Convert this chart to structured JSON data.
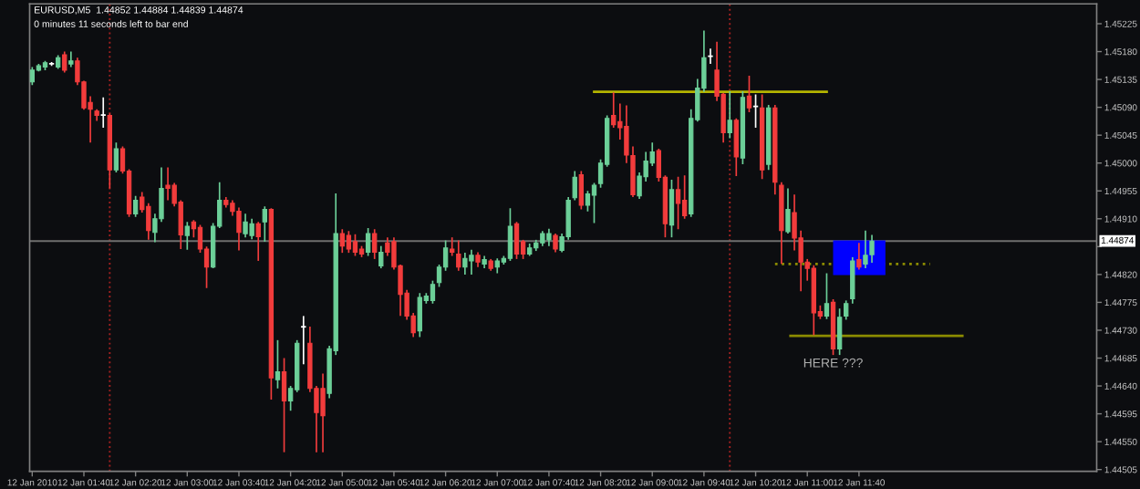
{
  "chart_data": {
    "type": "candlestick",
    "title": "EURUSD,M5  1.44852 1.44884 1.44839 1.44874",
    "annotations": [
      "0 minutes 11 seconds left to bar end",
      "HERE ???"
    ],
    "x": [
      "2010-01-12T01:00",
      "2010-01-12T01:05",
      "2010-01-12T01:10",
      "2010-01-12T01:15",
      "2010-01-12T01:20",
      "2010-01-12T01:25",
      "2010-01-12T01:30",
      "2010-01-12T01:35",
      "2010-01-12T01:40",
      "2010-01-12T01:45",
      "2010-01-12T01:50",
      "2010-01-12T01:55",
      "2010-01-12T02:00",
      "2010-01-12T02:05",
      "2010-01-12T02:10",
      "2010-01-12T02:15",
      "2010-01-12T02:20",
      "2010-01-12T02:25",
      "2010-01-12T02:30",
      "2010-01-12T02:35",
      "2010-01-12T02:40",
      "2010-01-12T02:45",
      "2010-01-12T02:50",
      "2010-01-12T02:55",
      "2010-01-12T03:00",
      "2010-01-12T03:05",
      "2010-01-12T03:10",
      "2010-01-12T03:15",
      "2010-01-12T03:20",
      "2010-01-12T03:25",
      "2010-01-12T03:30",
      "2010-01-12T03:35",
      "2010-01-12T03:40",
      "2010-01-12T03:45",
      "2010-01-12T03:50",
      "2010-01-12T03:55",
      "2010-01-12T04:00",
      "2010-01-12T04:05",
      "2010-01-12T04:10",
      "2010-01-12T04:15",
      "2010-01-12T04:20",
      "2010-01-12T04:25",
      "2010-01-12T04:30",
      "2010-01-12T04:35",
      "2010-01-12T04:40",
      "2010-01-12T04:45",
      "2010-01-12T04:50",
      "2010-01-12T04:55",
      "2010-01-12T05:00",
      "2010-01-12T05:05",
      "2010-01-12T05:10",
      "2010-01-12T05:15",
      "2010-01-12T05:20",
      "2010-01-12T05:25",
      "2010-01-12T05:30",
      "2010-01-12T05:35",
      "2010-01-12T05:40",
      "2010-01-12T05:45",
      "2010-01-12T05:50",
      "2010-01-12T05:55",
      "2010-01-12T06:00",
      "2010-01-12T06:05",
      "2010-01-12T06:10",
      "2010-01-12T06:15",
      "2010-01-12T06:20",
      "2010-01-12T06:25",
      "2010-01-12T06:30",
      "2010-01-12T06:35",
      "2010-01-12T06:40",
      "2010-01-12T06:45",
      "2010-01-12T06:50",
      "2010-01-12T06:55",
      "2010-01-12T07:00",
      "2010-01-12T07:05",
      "2010-01-12T07:10",
      "2010-01-12T07:15",
      "2010-01-12T07:20",
      "2010-01-12T07:25",
      "2010-01-12T07:30",
      "2010-01-12T07:35",
      "2010-01-12T07:40",
      "2010-01-12T07:45",
      "2010-01-12T07:50",
      "2010-01-12T07:55",
      "2010-01-12T08:00",
      "2010-01-12T08:05",
      "2010-01-12T08:10",
      "2010-01-12T08:15",
      "2010-01-12T08:20",
      "2010-01-12T08:25",
      "2010-01-12T08:30",
      "2010-01-12T08:35",
      "2010-01-12T08:40",
      "2010-01-12T08:45",
      "2010-01-12T08:50",
      "2010-01-12T08:55",
      "2010-01-12T09:00",
      "2010-01-12T09:05",
      "2010-01-12T09:10",
      "2010-01-12T09:15",
      "2010-01-12T09:20",
      "2010-01-12T09:25",
      "2010-01-12T09:30",
      "2010-01-12T09:35",
      "2010-01-12T09:40",
      "2010-01-12T09:45",
      "2010-01-12T09:50",
      "2010-01-12T09:55",
      "2010-01-12T10:00",
      "2010-01-12T10:05",
      "2010-01-12T10:10",
      "2010-01-12T10:15",
      "2010-01-12T10:20",
      "2010-01-12T10:25",
      "2010-01-12T10:30",
      "2010-01-12T10:35",
      "2010-01-12T10:40",
      "2010-01-12T10:45",
      "2010-01-12T10:50",
      "2010-01-12T10:55",
      "2010-01-12T11:00",
      "2010-01-12T11:05",
      "2010-01-12T11:10",
      "2010-01-12T11:15",
      "2010-01-12T11:20",
      "2010-01-12T11:25",
      "2010-01-12T11:30",
      "2010-01-12T11:35",
      "2010-01-12T11:40",
      "2010-01-12T11:45",
      "2010-01-12T11:50"
    ],
    "ohlc": [
      [
        1.45131,
        1.45155,
        1.45126,
        1.4515
      ],
      [
        1.4515,
        1.4516,
        1.45148,
        1.45157
      ],
      [
        1.45155,
        1.45165,
        1.4515,
        1.45162
      ],
      [
        1.4516,
        1.45163,
        1.45157,
        1.45161
      ],
      [
        1.45155,
        1.45174,
        1.45152,
        1.4517
      ],
      [
        1.45175,
        1.4518,
        1.45146,
        1.4515
      ],
      [
        1.4516,
        1.4518,
        1.45155,
        1.45165
      ],
      [
        1.45165,
        1.4517,
        1.45126,
        1.45131
      ],
      [
        1.45131,
        1.45133,
        1.45086,
        1.45089
      ],
      [
        1.45098,
        1.45108,
        1.45033,
        1.45087
      ],
      [
        1.45084,
        1.45087,
        1.45068,
        1.45077
      ],
      [
        1.45077,
        1.45106,
        1.45057,
        1.45078
      ],
      [
        1.45077,
        1.4508,
        1.44959,
        1.44989
      ],
      [
        1.44989,
        1.45033,
        1.44985,
        1.45023
      ],
      [
        1.45023,
        1.45027,
        1.44983,
        1.44987
      ],
      [
        1.44987,
        1.4499,
        1.44913,
        1.44918
      ],
      [
        1.44918,
        1.44947,
        1.44913,
        1.4494
      ],
      [
        1.44945,
        1.44953,
        1.4492,
        1.44925
      ],
      [
        1.4493,
        1.44935,
        1.44876,
        1.44891
      ],
      [
        1.44888,
        1.44918,
        1.44872,
        1.4491
      ],
      [
        1.4491,
        1.44993,
        1.44905,
        1.44959
      ],
      [
        1.44964,
        1.44993,
        1.4494,
        1.44959
      ],
      [
        1.44964,
        1.44968,
        1.4493,
        1.44935
      ],
      [
        1.44937,
        1.4494,
        1.44861,
        1.44884
      ],
      [
        1.44883,
        1.44905,
        1.4486,
        1.44898
      ],
      [
        1.44905,
        1.44908,
        1.4488,
        1.44894
      ],
      [
        1.44896,
        1.449,
        1.44855,
        1.44861
      ],
      [
        1.44861,
        1.44865,
        1.44798,
        1.44832
      ],
      [
        1.44832,
        1.44903,
        1.4483,
        1.44898
      ],
      [
        1.44898,
        1.44969,
        1.44895,
        1.4494
      ],
      [
        1.4494,
        1.44945,
        1.44928,
        1.44933
      ],
      [
        1.44935,
        1.4494,
        1.44915,
        1.44922
      ],
      [
        1.44922,
        1.44928,
        1.44859,
        1.44888
      ],
      [
        1.44886,
        1.44918,
        1.4488,
        1.44905
      ],
      [
        1.44883,
        1.4491,
        1.44877,
        1.44902
      ],
      [
        1.44902,
        1.44905,
        1.44842,
        1.44881
      ],
      [
        1.44905,
        1.4493,
        1.44873,
        1.44925
      ],
      [
        1.44925,
        1.44927,
        1.44618,
        1.44653
      ],
      [
        1.4465,
        1.44714,
        1.44636,
        1.44663
      ],
      [
        1.44663,
        1.44685,
        1.44533,
        1.44616
      ],
      [
        1.44616,
        1.4464,
        1.446,
        1.44636
      ],
      [
        1.44634,
        1.44714,
        1.4463,
        1.44709
      ],
      [
        1.44735,
        1.44753,
        1.44675,
        1.44736
      ],
      [
        1.44709,
        1.44736,
        1.4463,
        1.44636
      ],
      [
        1.44636,
        1.4464,
        1.44533,
        1.44597
      ],
      [
        1.44636,
        1.4466,
        1.44533,
        1.44592
      ],
      [
        1.44628,
        1.44705,
        1.4462,
        1.447
      ],
      [
        1.44697,
        1.44951,
        1.4469,
        1.44886
      ],
      [
        1.44886,
        1.44893,
        1.44855,
        1.44866
      ],
      [
        1.44883,
        1.4489,
        1.44855,
        1.44861
      ],
      [
        1.44873,
        1.44885,
        1.4485,
        1.44856
      ],
      [
        1.44861,
        1.44866,
        1.44848,
        1.44853
      ],
      [
        1.44856,
        1.44895,
        1.4485,
        1.44886
      ],
      [
        1.44886,
        1.44893,
        1.44845,
        1.44856
      ],
      [
        1.44834,
        1.44866,
        1.4483,
        1.44856
      ],
      [
        1.44871,
        1.4488,
        1.4485,
        1.44856
      ],
      [
        1.44873,
        1.4488,
        1.44828,
        1.44832
      ],
      [
        1.44834,
        1.44836,
        1.44753,
        1.44788
      ],
      [
        1.4479,
        1.44795,
        1.44747,
        1.44753
      ],
      [
        1.44753,
        1.44758,
        1.44719,
        1.44726
      ],
      [
        1.44729,
        1.4479,
        1.44719,
        1.44783
      ],
      [
        1.44778,
        1.4479,
        1.44773,
        1.44785
      ],
      [
        1.44778,
        1.4481,
        1.44773,
        1.44804
      ],
      [
        1.44807,
        1.44836,
        1.448,
        1.44832
      ],
      [
        1.44832,
        1.44875,
        1.44826,
        1.44863
      ],
      [
        1.44861,
        1.4488,
        1.4485,
        1.44856
      ],
      [
        1.44853,
        1.44875,
        1.44826,
        1.44832
      ],
      [
        1.44832,
        1.44855,
        1.4482,
        1.44846
      ],
      [
        1.44842,
        1.4486,
        1.4482,
        1.44851
      ],
      [
        1.44851,
        1.44856,
        1.44832,
        1.4484
      ],
      [
        1.44837,
        1.4485,
        1.4483,
        1.44844
      ],
      [
        1.44842,
        1.44845,
        1.44826,
        1.4483
      ],
      [
        1.44832,
        1.44846,
        1.44822,
        1.44842
      ],
      [
        1.4484,
        1.4485,
        1.44836,
        1.44846
      ],
      [
        1.44846,
        1.44927,
        1.44842,
        1.44898
      ],
      [
        1.44902,
        1.44905,
        1.44845,
        1.44853
      ],
      [
        1.44873,
        1.44876,
        1.44845,
        1.44853
      ],
      [
        1.44853,
        1.4487,
        1.4485,
        1.44863
      ],
      [
        1.44863,
        1.44876,
        1.44858,
        1.44871
      ],
      [
        1.44871,
        1.4489,
        1.44866,
        1.44886
      ],
      [
        1.44876,
        1.44894,
        1.44866,
        1.44886
      ],
      [
        1.44883,
        1.44886,
        1.44856,
        1.44861
      ],
      [
        1.44859,
        1.44886,
        1.44856,
        1.44881
      ],
      [
        1.44881,
        1.44945,
        1.44876,
        1.4494
      ],
      [
        1.44944,
        1.44987,
        1.4494,
        1.44977
      ],
      [
        1.44981,
        1.44987,
        1.44925,
        1.44932
      ],
      [
        1.44932,
        1.44955,
        1.44922,
        1.4495
      ],
      [
        1.44948,
        1.44968,
        1.44903,
        1.44964
      ],
      [
        1.44967,
        1.45006,
        1.4496,
        1.45
      ],
      [
        1.44998,
        1.45077,
        1.44994,
        1.45072
      ],
      [
        1.45077,
        1.45114,
        1.45057,
        1.45062
      ],
      [
        1.45067,
        1.45096,
        1.45038,
        1.45057
      ],
      [
        1.45059,
        1.45093,
        1.45,
        1.45013
      ],
      [
        1.45012,
        1.45027,
        1.44945,
        1.44949
      ],
      [
        1.44947,
        1.44985,
        1.44942,
        1.44979
      ],
      [
        1.44978,
        1.45018,
        1.4497,
        1.45003
      ],
      [
        1.45,
        1.45033,
        1.44995,
        1.45018
      ],
      [
        1.4502,
        1.45023,
        1.4497,
        1.44977
      ],
      [
        1.44977,
        1.4498,
        1.4488,
        1.44902
      ],
      [
        1.449,
        1.44973,
        1.4488,
        1.44957
      ],
      [
        1.44957,
        1.44978,
        1.44893,
        1.44935
      ],
      [
        1.4494,
        1.4498,
        1.4491,
        1.44915
      ],
      [
        1.44918,
        1.45087,
        1.44913,
        1.45072
      ],
      [
        1.4507,
        1.45136,
        1.45067,
        1.45121
      ],
      [
        1.45121,
        1.45214,
        1.45115,
        1.4517
      ],
      [
        1.45173,
        1.45185,
        1.4516,
        1.45172
      ],
      [
        1.4515,
        1.45196,
        1.451,
        1.45108
      ],
      [
        1.45111,
        1.45113,
        1.45033,
        1.45049
      ],
      [
        1.45049,
        1.45116,
        1.4504,
        1.45069
      ],
      [
        1.45069,
        1.45072,
        1.44979,
        1.4501
      ],
      [
        1.45008,
        1.45116,
        1.44998,
        1.45106
      ],
      [
        1.45108,
        1.45141,
        1.45082,
        1.45089
      ],
      [
        1.45092,
        1.45111,
        1.45057,
        1.45091
      ],
      [
        1.45089,
        1.45111,
        1.44974,
        1.44989
      ],
      [
        1.44998,
        1.45094,
        1.44989,
        1.45089
      ],
      [
        1.45089,
        1.45094,
        1.44949,
        1.44969
      ],
      [
        1.44964,
        1.44969,
        1.44837,
        1.44891
      ],
      [
        1.44889,
        1.44959,
        1.44886,
        1.44925
      ],
      [
        1.4492,
        1.44949,
        1.44859,
        1.44879
      ],
      [
        1.44879,
        1.44891,
        1.44793,
        1.4484
      ],
      [
        1.4484,
        1.44845,
        1.4481,
        1.4483
      ],
      [
        1.4483,
        1.44835,
        1.44722,
        1.44758
      ],
      [
        1.4476,
        1.4477,
        1.44748,
        1.44753
      ],
      [
        1.44753,
        1.44822,
        1.44748,
        1.44773
      ],
      [
        1.44775,
        1.4478,
        1.4469,
        1.447
      ],
      [
        1.447,
        1.44765,
        1.4469,
        1.44751
      ],
      [
        1.44753,
        1.44778,
        1.44747,
        1.44773
      ],
      [
        1.44781,
        1.44848,
        1.44773,
        1.44842
      ],
      [
        1.44844,
        1.44871,
        1.44828,
        1.44832
      ],
      [
        1.44837,
        1.44891,
        1.4483,
        1.44851
      ],
      [
        1.44852,
        1.44884,
        1.44839,
        1.44874
      ]
    ],
    "colors": [
      "#6ccf98",
      "#6ccf98",
      "#6ccf98",
      "#ffffff",
      "#6ccf98",
      "#f23c3c",
      "#6ccf98",
      "#f23c3c",
      "#f23c3c",
      "#f23c3c",
      "#f23c3c",
      "#ffffff",
      "#f23c3c",
      "#6ccf98",
      "#f23c3c",
      "#f23c3c",
      "#6ccf98",
      "#f23c3c",
      "#f23c3c",
      "#6ccf98",
      "#6ccf98",
      "#f23c3c",
      "#f23c3c",
      "#f23c3c",
      "#6ccf98",
      "#f23c3c",
      "#f23c3c",
      "#f23c3c",
      "#6ccf98",
      "#6ccf98",
      "#f23c3c",
      "#f23c3c",
      "#f23c3c",
      "#6ccf98",
      "#6ccf98",
      "#f23c3c",
      "#6ccf98",
      "#f23c3c",
      "#6ccf98",
      "#f23c3c",
      "#6ccf98",
      "#6ccf98",
      "#ffffff",
      "#f23c3c",
      "#f23c3c",
      "#f23c3c",
      "#6ccf98",
      "#6ccf98",
      "#f23c3c",
      "#f23c3c",
      "#f23c3c",
      "#f23c3c",
      "#6ccf98",
      "#f23c3c",
      "#6ccf98",
      "#f23c3c",
      "#f23c3c",
      "#f23c3c",
      "#f23c3c",
      "#f23c3c",
      "#6ccf98",
      "#6ccf98",
      "#6ccf98",
      "#6ccf98",
      "#6ccf98",
      "#f23c3c",
      "#f23c3c",
      "#6ccf98",
      "#6ccf98",
      "#f23c3c",
      "#6ccf98",
      "#f23c3c",
      "#6ccf98",
      "#6ccf98",
      "#6ccf98",
      "#f23c3c",
      "#f23c3c",
      "#6ccf98",
      "#6ccf98",
      "#6ccf98",
      "#6ccf98",
      "#f23c3c",
      "#6ccf98",
      "#6ccf98",
      "#6ccf98",
      "#f23c3c",
      "#6ccf98",
      "#6ccf98",
      "#6ccf98",
      "#6ccf98",
      "#f23c3c",
      "#f23c3c",
      "#f23c3c",
      "#f23c3c",
      "#6ccf98",
      "#6ccf98",
      "#6ccf98",
      "#f23c3c",
      "#f23c3c",
      "#6ccf98",
      "#f23c3c",
      "#f23c3c",
      "#6ccf98",
      "#6ccf98",
      "#6ccf98",
      "#ffffff",
      "#f23c3c",
      "#f23c3c",
      "#6ccf98",
      "#f23c3c",
      "#6ccf98",
      "#f23c3c",
      "#ffffff",
      "#f23c3c",
      "#6ccf98",
      "#f23c3c",
      "#f23c3c",
      "#6ccf98",
      "#f23c3c",
      "#f23c3c",
      "#f23c3c",
      "#f23c3c",
      "#f23c3c",
      "#6ccf98",
      "#f23c3c",
      "#6ccf98",
      "#6ccf98",
      "#6ccf98",
      "#f23c3c",
      "#6ccf98",
      "#6ccf98"
    ],
    "series": [
      {
        "type": "line",
        "color": "#b4b400",
        "x": [
          "2010-01-12T08:15",
          "2010-01-12T11:15"
        ],
        "values": [
          1.45115,
          1.45115
        ]
      },
      {
        "type": "line",
        "color": "#8c8c00",
        "line_style": "dotted",
        "x": [
          "2010-01-12T10:35",
          "2010-01-12T12:35"
        ],
        "values": [
          1.44837,
          1.44837
        ]
      },
      {
        "type": "line",
        "color": "#8c8c00",
        "x": [
          "2010-01-12T10:47",
          "2010-01-12T13:00"
        ],
        "values": [
          1.44721,
          1.44721
        ]
      }
    ],
    "ref_lines": [
      {
        "axis": "x",
        "value": "2010-01-12T02:00",
        "color": "#a02020",
        "line_style": "dotted"
      },
      {
        "axis": "x",
        "value": "2010-01-12T10:00",
        "color": "#a02020",
        "line_style": "dotted"
      },
      {
        "axis": "y",
        "value": 1.44874,
        "label": "1.44874",
        "color": "#6e6e6e",
        "line_style": "solid"
      }
    ],
    "xlim": [
      "2010-01-12T00:58",
      "2010-01-12T14:44"
    ],
    "xticks": [
      {
        "value": "2010-01-12T01:00",
        "label": "12 Jan 2010"
      },
      {
        "value": "2010-01-12T01:40",
        "label": "12 Jan 01:40"
      },
      {
        "value": "2010-01-12T02:20",
        "label": "12 Jan 02:20"
      },
      {
        "value": "2010-01-12T03:00",
        "label": "12 Jan 03:00"
      },
      {
        "value": "2010-01-12T03:40",
        "label": "12 Jan 03:40"
      },
      {
        "value": "2010-01-12T04:20",
        "label": "12 Jan 04:20"
      },
      {
        "value": "2010-01-12T05:00",
        "label": "12 Jan 05:00"
      },
      {
        "value": "2010-01-12T05:40",
        "label": "12 Jan 05:40"
      },
      {
        "value": "2010-01-12T06:20",
        "label": "12 Jan 06:20"
      },
      {
        "value": "2010-01-12T07:00",
        "label": "12 Jan 07:00"
      },
      {
        "value": "2010-01-12T07:40",
        "label": "12 Jan 07:40"
      },
      {
        "value": "2010-01-12T08:20",
        "label": "12 Jan 08:20"
      },
      {
        "value": "2010-01-12T09:00",
        "label": "12 Jan 09:00"
      },
      {
        "value": "2010-01-12T09:40",
        "label": "12 Jan 09:40"
      },
      {
        "value": "2010-01-12T10:20",
        "label": "12 Jan 10:20"
      },
      {
        "value": "2010-01-12T11:00",
        "label": "12 Jan 11:00"
      },
      {
        "value": "2010-01-12T11:40",
        "label": "12 Jan 11:40"
      }
    ],
    "ylim": [
      1.44502,
      1.45257
    ],
    "yticks": [
      {
        "value": 1.45225,
        "label": "1.45225"
      },
      {
        "value": 1.4518,
        "label": "1.45180"
      },
      {
        "value": 1.45135,
        "label": "1.45135"
      },
      {
        "value": 1.4509,
        "label": "1.45090"
      },
      {
        "value": 1.45045,
        "label": "1.45045"
      },
      {
        "value": 1.45,
        "label": "1.45000"
      },
      {
        "value": 1.44955,
        "label": "1.44955"
      },
      {
        "value": 1.4491,
        "label": "1.44910"
      },
      {
        "value": 1.44865,
        "label": null
      },
      {
        "value": 1.4482,
        "label": "1.44820"
      },
      {
        "value": 1.44775,
        "label": "1.44775"
      },
      {
        "value": 1.4473,
        "label": "1.44730"
      },
      {
        "value": 1.44685,
        "label": "1.44685"
      },
      {
        "value": 1.4464,
        "label": "1.44640"
      },
      {
        "value": 1.44595,
        "label": "1.44595"
      },
      {
        "value": 1.4455,
        "label": "1.44550"
      },
      {
        "value": 1.44505,
        "label": "1.44505"
      }
    ]
  }
}
